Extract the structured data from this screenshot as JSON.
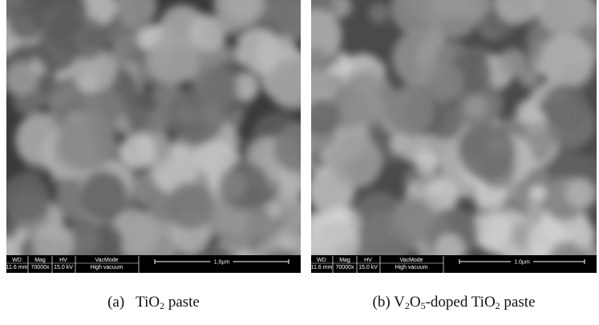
{
  "panels": [
    {
      "info_bar": {
        "headers": [
          "WD",
          "Mag",
          "HV",
          "VacMode"
        ],
        "values": [
          "11.6 mm",
          "70000x",
          "15.0 kV",
          "High vacuum"
        ],
        "scale": "1.0µm"
      },
      "caption": {
        "label": "(a)",
        "parts": [
          {
            "text": "TiO"
          },
          {
            "text": "2",
            "sub": true
          },
          {
            "text": " paste"
          }
        ]
      }
    },
    {
      "info_bar": {
        "headers": [
          "WD",
          "Mag",
          "HV",
          "VacMode"
        ],
        "values": [
          "11.6 mm",
          "70000x",
          "15.0 kV",
          "High vacuum"
        ],
        "scale": "1.0µm"
      },
      "caption": {
        "label": "(b)",
        "parts": [
          {
            "text": "V"
          },
          {
            "text": "2",
            "sub": true
          },
          {
            "text": "O"
          },
          {
            "text": "5",
            "sub": true
          },
          {
            "text": "-doped TiO"
          },
          {
            "text": "2",
            "sub": true
          },
          {
            "text": " paste"
          }
        ]
      }
    }
  ]
}
